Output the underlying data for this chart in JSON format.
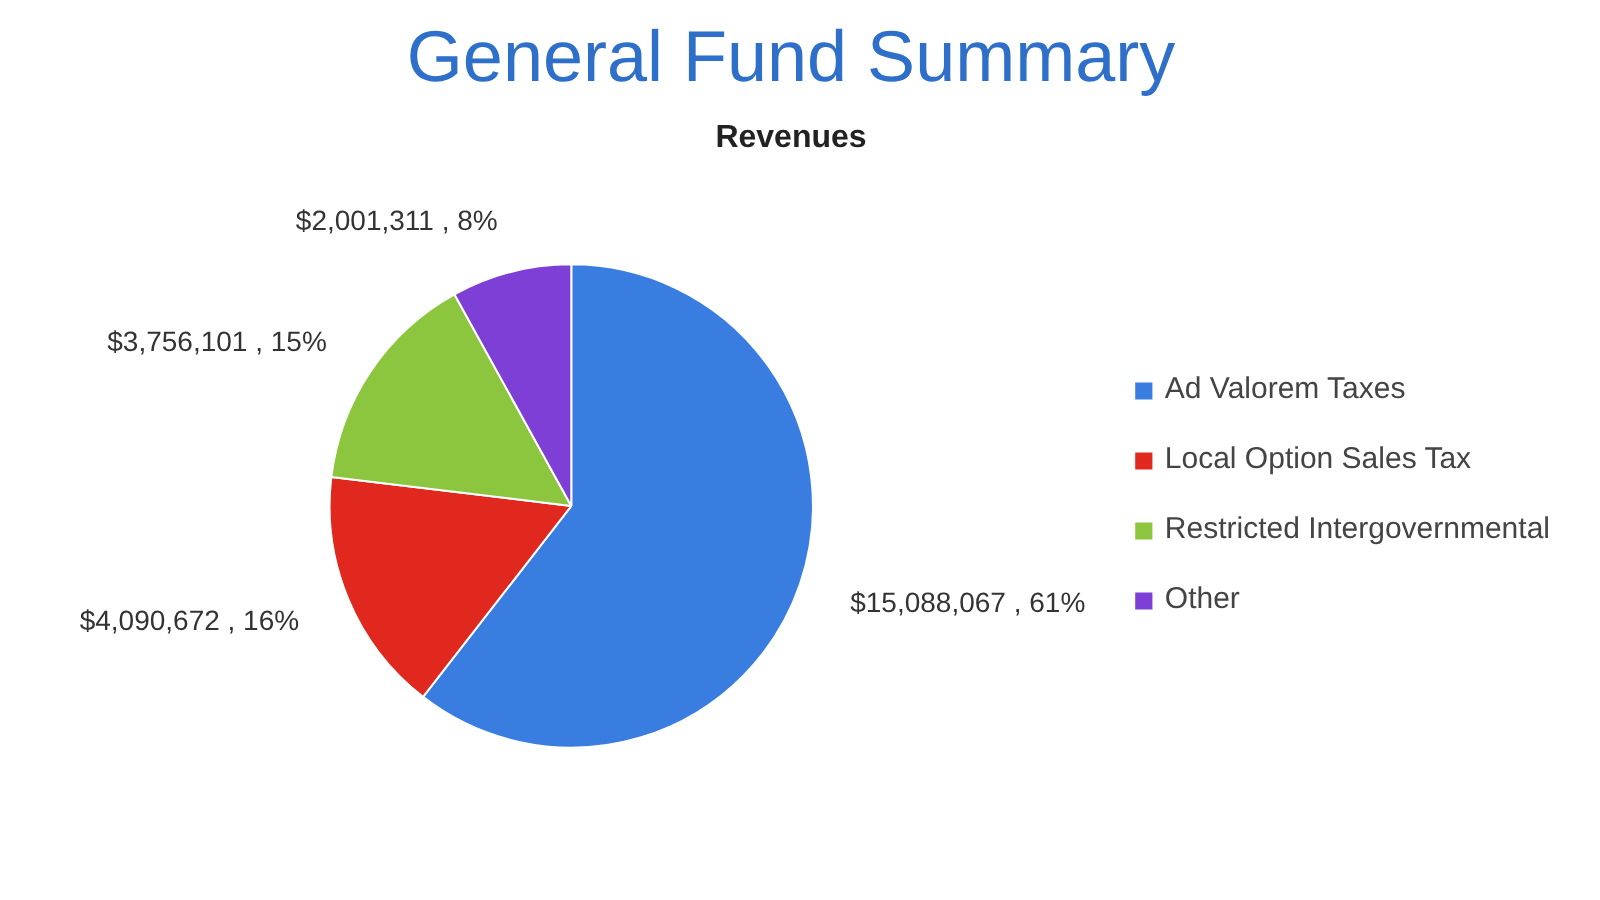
{
  "chart_data": {
    "type": "pie",
    "title": "General Fund Summary",
    "subtitle": "Revenues",
    "categories": [
      "Ad Valorem Taxes",
      "Local Option Sales Tax",
      "Restricted Intergovernmental",
      "Other"
    ],
    "values": [
      15088067,
      4090672,
      3756101,
      2001311
    ],
    "colors": [
      "#3a7de0",
      "#e0281e",
      "#8cc63f",
      "#7e3fd6"
    ],
    "value_labels": [
      "$15,088,067 , 61%",
      "$4,090,672 , 16%",
      "$3,756,101 , 15%",
      "$2,001,311 , 8%"
    ],
    "legend": "right"
  }
}
